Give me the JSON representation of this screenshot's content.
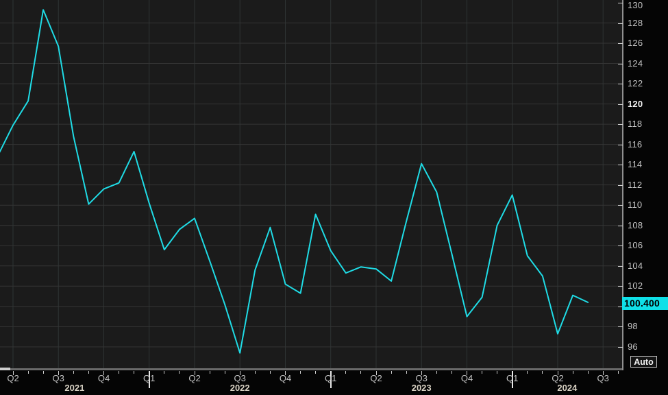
{
  "chart_data": {
    "type": "line",
    "title": "",
    "legend": false,
    "grid": true,
    "x": [
      "2021-03",
      "2021-04",
      "2021-05",
      "2021-06",
      "2021-07",
      "2021-08",
      "2021-09",
      "2021-10",
      "2021-11",
      "2021-12",
      "2022-01",
      "2022-02",
      "2022-03",
      "2022-04",
      "2022-05",
      "2022-06",
      "2022-07",
      "2022-08",
      "2022-09",
      "2022-10",
      "2022-11",
      "2022-12",
      "2023-01",
      "2023-02",
      "2023-03",
      "2023-04",
      "2023-05",
      "2023-06",
      "2023-07",
      "2023-08",
      "2023-09",
      "2023-10",
      "2023-11",
      "2023-12",
      "2024-01",
      "2024-02",
      "2024-03",
      "2024-04",
      "2024-05",
      "2024-06"
    ],
    "values": [
      114.9,
      117.9,
      120.3,
      129.3,
      125.7,
      116.8,
      110.1,
      111.6,
      112.2,
      115.3,
      110.2,
      105.6,
      107.6,
      108.7,
      104.5,
      100.2,
      95.4,
      103.6,
      107.8,
      102.2,
      101.3,
      109.1,
      105.5,
      103.3,
      103.9,
      103.7,
      102.5,
      108.4,
      114.1,
      111.3,
      105.2,
      99.0,
      100.9,
      108.0,
      111.0,
      105.0,
      103.0,
      97.3,
      101.1,
      100.4
    ],
    "y_axis": {
      "min": 96,
      "max": 130,
      "tick_step": 2,
      "tick_labels": [
        "130",
        "128",
        "126",
        "124",
        "122",
        "120",
        "118",
        "116",
        "114",
        "112",
        "110",
        "108",
        "106",
        "104",
        "102",
        "100",
        "98",
        "96"
      ],
      "bold_tick_label": "120"
    },
    "x_axis": {
      "quarter_labels": [
        {
          "label": "Q2",
          "month": "2021-04"
        },
        {
          "label": "Q3",
          "month": "2021-07"
        },
        {
          "label": "Q4",
          "month": "2021-10"
        },
        {
          "label": "Q1",
          "month": "2022-01"
        },
        {
          "label": "Q2",
          "month": "2022-04"
        },
        {
          "label": "Q3",
          "month": "2022-07"
        },
        {
          "label": "Q4",
          "month": "2022-10"
        },
        {
          "label": "Q1",
          "month": "2023-01"
        },
        {
          "label": "Q2",
          "month": "2023-04"
        },
        {
          "label": "Q3",
          "month": "2023-07"
        },
        {
          "label": "Q4",
          "month": "2023-10"
        },
        {
          "label": "Q1",
          "month": "2024-01"
        },
        {
          "label": "Q2",
          "month": "2024-04"
        },
        {
          "label": "Q3",
          "month": "2024-07"
        }
      ],
      "year_labels": [
        {
          "label": "2021",
          "year": 2021
        },
        {
          "label": "2022",
          "year": 2022
        },
        {
          "label": "2023",
          "year": 2023
        },
        {
          "label": "2024",
          "year": 2024
        }
      ],
      "year_boundary_ticks": [
        "2022-01",
        "2023-01",
        "2024-01"
      ]
    },
    "last_price": {
      "label": "100.400",
      "value": 100.4
    }
  },
  "controls": {
    "auto_button_label": "Auto"
  },
  "colors": {
    "frame_bg": "#050505",
    "plot_bg": "#1b1b1b",
    "grid_h": "#353535",
    "grid_v": "#2f3434",
    "line": "#1fdce6",
    "axis_line": "#8f8f8f",
    "bottom_bar": "#6a6a6a",
    "scroll_thumb": "#cfcfcf",
    "tick_mark": "#cfcfcf",
    "year_tick_mark": "#e8e8e8",
    "tick_text": "#c6c6c6",
    "bold_tick_text": "#f5f5f5",
    "year_text": "#d9d2c4",
    "price_label_bg": "#0fe0e8",
    "price_label_text": "#000000"
  }
}
